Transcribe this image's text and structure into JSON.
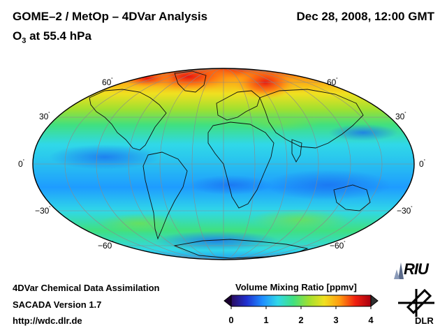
{
  "header": {
    "title": "GOME–2 / MetOp – 4DVar Analysis",
    "species_main": "O",
    "species_sub": "3",
    "level_text": " at 55.4 hPa",
    "datetime": "Dec 28, 2008, 12:00 GMT"
  },
  "map": {
    "projection": "Mollweide",
    "lat_labels_left": [
      "60",
      "30",
      "0",
      "−30",
      "−60"
    ],
    "lat_labels_right": [
      "60",
      "30",
      "0",
      "−30",
      "−60"
    ],
    "degree_symbol": "˚"
  },
  "footer": {
    "line1": "4DVar Chemical Data Assimilation",
    "line2": "SACADA Version 1.7",
    "line3": "http://wdc.dlr.de"
  },
  "colorbar": {
    "title": "Volume Mixing Ratio [ppmv]",
    "ticks": [
      "0",
      "1",
      "2",
      "3",
      "4"
    ],
    "colors": [
      "#2a0a5e",
      "#2030d0",
      "#1e8cff",
      "#30d8e8",
      "#40e080",
      "#a0e030",
      "#f0e020",
      "#ff9a10",
      "#f02010",
      "#a80010"
    ]
  },
  "logos": {
    "riu": "RIU",
    "dlr": "DLR"
  }
}
